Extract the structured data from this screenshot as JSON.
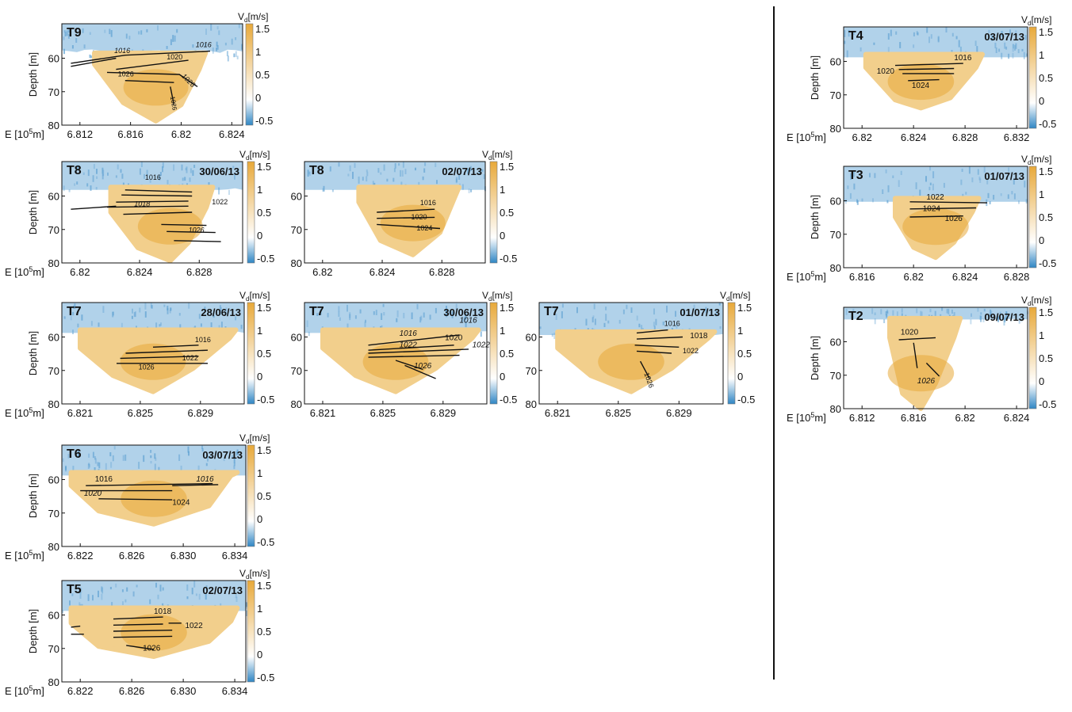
{
  "labels": {
    "depth": "Depth [m]",
    "easting_prefix": "E [10",
    "easting_exp": "5",
    "easting_suffix": "m]",
    "velocity_prefix": "V",
    "velocity_sub": "d",
    "velocity_suffix": "[m/s]"
  },
  "colorbar_ticks": [
    "1.5",
    "1",
    "0.5",
    "0",
    "-0.5"
  ],
  "colors": {
    "positive": "#e8a93a",
    "negative": "#2f86c4",
    "zero": "#ffffff",
    "contour": "#111111"
  },
  "chart_data": [
    {
      "type": "heatmap",
      "transect": "T9",
      "date": "",
      "xticks": [
        "6.812",
        "6.816",
        "6.82",
        "6.824"
      ],
      "yticks": [
        "60",
        "70",
        "80"
      ],
      "show_xlabel": true,
      "show_ylabel": true,
      "color_scale": [
        -0.5,
        1.5
      ],
      "contours": [
        "1016",
        "1016",
        "1020",
        "1026",
        "1026",
        "1026"
      ]
    },
    {
      "type": "heatmap",
      "transect": "T8",
      "date": "30/06/13",
      "xticks": [
        "6.82",
        "6.824",
        "6.828"
      ],
      "yticks": [
        "60",
        "70",
        "80"
      ],
      "show_xlabel": true,
      "show_ylabel": true,
      "color_scale": [
        -0.5,
        1.5
      ],
      "contours": [
        "1016",
        "1018",
        "1022",
        "1026"
      ]
    },
    {
      "type": "heatmap",
      "transect": "T8",
      "date": "02/07/13",
      "xticks": [
        "6.82",
        "6.824",
        "6.828"
      ],
      "yticks": [
        "60",
        "70",
        "80"
      ],
      "show_xlabel": false,
      "show_ylabel": false,
      "color_scale": [
        -0.5,
        1.5
      ],
      "contours": [
        "1016",
        "1020",
        "1024"
      ]
    },
    {
      "type": "heatmap",
      "transect": "T7",
      "date": "28/06/13",
      "xticks": [
        "6.821",
        "6.825",
        "6.829"
      ],
      "yticks": [
        "60",
        "70",
        "80"
      ],
      "show_xlabel": true,
      "show_ylabel": true,
      "color_scale": [
        -0.5,
        1.5
      ],
      "contours": [
        "1016",
        "1022",
        "1026"
      ]
    },
    {
      "type": "heatmap",
      "transect": "T7",
      "date": "30/06/13",
      "xticks": [
        "6.821",
        "6.825",
        "6.829"
      ],
      "yticks": [
        "60",
        "70",
        "80"
      ],
      "show_xlabel": false,
      "show_ylabel": false,
      "color_scale": [
        -0.5,
        1.5
      ],
      "contours": [
        "1016",
        "1016",
        "1020",
        "1022",
        "1022",
        "1026"
      ]
    },
    {
      "type": "heatmap",
      "transect": "T7",
      "date": "01/07/13",
      "xticks": [
        "6.821",
        "6.825",
        "6.829"
      ],
      "yticks": [
        "60",
        "70",
        "80"
      ],
      "show_xlabel": false,
      "show_ylabel": false,
      "color_scale": [
        -0.5,
        1.5
      ],
      "contours": [
        "1016",
        "1018",
        "1022",
        "1026"
      ]
    },
    {
      "type": "heatmap",
      "transect": "T6",
      "date": "03/07/13",
      "xticks": [
        "6.822",
        "6.826",
        "6.830",
        "6.834"
      ],
      "yticks": [
        "60",
        "70",
        "80"
      ],
      "show_xlabel": true,
      "show_ylabel": true,
      "color_scale": [
        -0.5,
        1.5
      ],
      "contours": [
        "1016",
        "1016",
        "1020",
        "1024"
      ]
    },
    {
      "type": "heatmap",
      "transect": "T5",
      "date": "02/07/13",
      "xticks": [
        "6.822",
        "6.826",
        "6.830",
        "6.834"
      ],
      "yticks": [
        "60",
        "70",
        "80"
      ],
      "show_xlabel": true,
      "show_ylabel": true,
      "color_scale": [
        -0.5,
        1.5
      ],
      "contours": [
        "1018",
        "1022",
        "1026"
      ]
    },
    {
      "type": "heatmap",
      "transect": "T4",
      "date": "03/07/13",
      "xticks": [
        "6.82",
        "6.824",
        "6.828",
        "6.832"
      ],
      "yticks": [
        "60",
        "70",
        "80"
      ],
      "show_xlabel": true,
      "show_ylabel": true,
      "color_scale": [
        -0.5,
        1.5
      ],
      "contours": [
        "1016",
        "1020",
        "1024"
      ]
    },
    {
      "type": "heatmap",
      "transect": "T3",
      "date": "01/07/13",
      "xticks": [
        "6.816",
        "6.82",
        "6.824",
        "6.828"
      ],
      "yticks": [
        "60",
        "70",
        "80"
      ],
      "show_xlabel": true,
      "show_ylabel": true,
      "color_scale": [
        -0.5,
        1.5
      ],
      "contours": [
        "1022",
        "1024",
        "1026"
      ]
    },
    {
      "type": "heatmap",
      "transect": "T2",
      "date": "09/07/13",
      "xticks": [
        "6.812",
        "6.816",
        "6.82",
        "6.824"
      ],
      "yticks": [
        "60",
        "70",
        "80"
      ],
      "show_xlabel": true,
      "show_ylabel": true,
      "color_scale": [
        -0.5,
        1.5
      ],
      "contours": [
        "1020",
        "1026"
      ]
    }
  ]
}
